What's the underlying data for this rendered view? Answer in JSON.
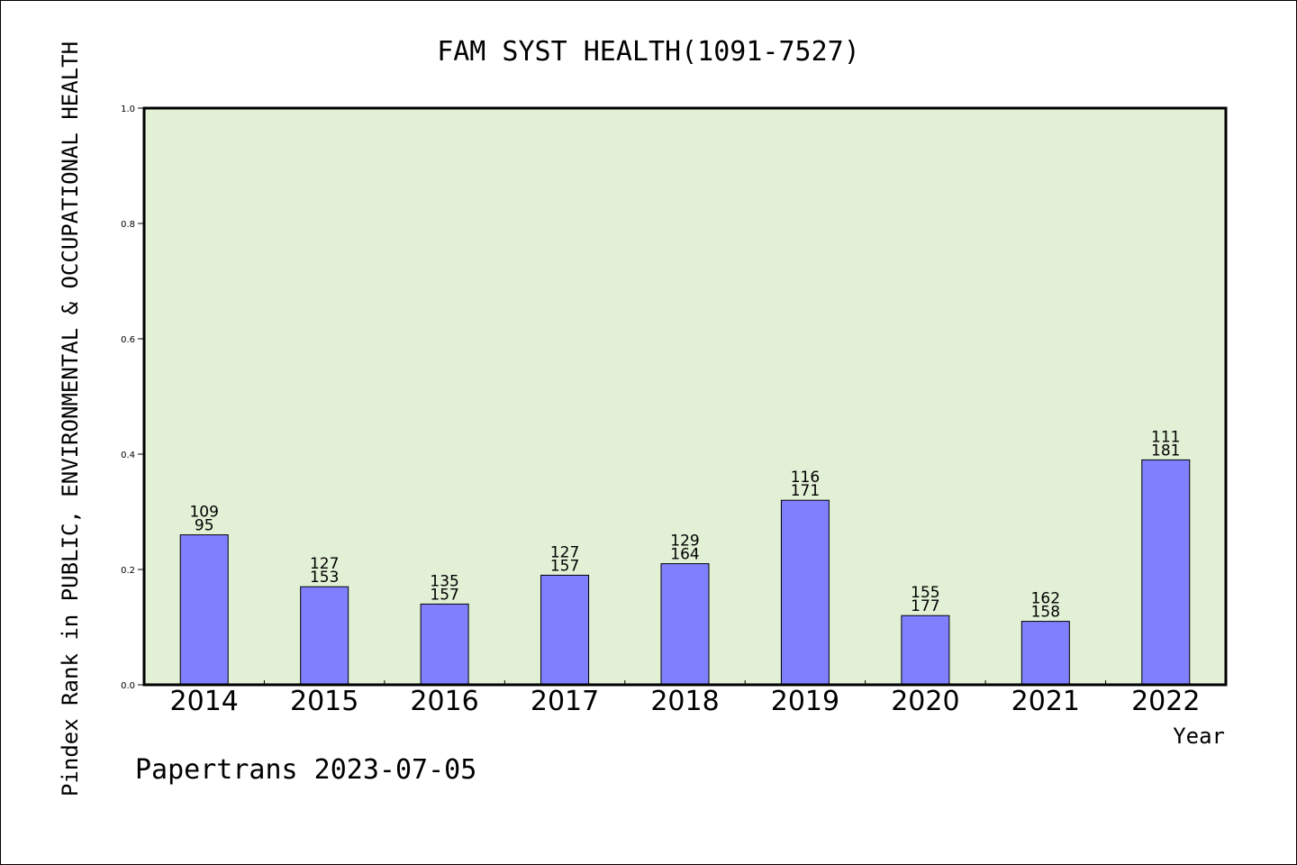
{
  "chart_data": {
    "type": "bar",
    "title": "FAM SYST HEALTH(1091-7527)",
    "xlabel": "Year",
    "ylabel": "Pindex Rank in PUBLIC, ENVIRONMENTAL & OCCUPATIONAL HEALTH",
    "ylim": [
      0,
      1.0
    ],
    "yticks": [
      "0.0",
      "0.2",
      "0.4",
      "0.6",
      "0.8",
      "1.0"
    ],
    "categories": [
      "2014",
      "2015",
      "2016",
      "2017",
      "2018",
      "2019",
      "2020",
      "2021",
      "2022"
    ],
    "values": [
      0.26,
      0.17,
      0.14,
      0.19,
      0.21,
      0.32,
      0.12,
      0.11,
      0.39
    ],
    "label_top": [
      "109",
      "127",
      "135",
      "127",
      "129",
      "116",
      "155",
      "162",
      "111"
    ],
    "label_bottom": [
      "95",
      "153",
      "157",
      "157",
      "164",
      "171",
      "177",
      "158",
      "181"
    ],
    "colors": {
      "bar_fill": "#8080ff",
      "plot_background": "#e2f0d6",
      "axis": "#000000"
    },
    "grid": false,
    "legend": "none"
  },
  "footer": "Papertrans 2023-07-05"
}
